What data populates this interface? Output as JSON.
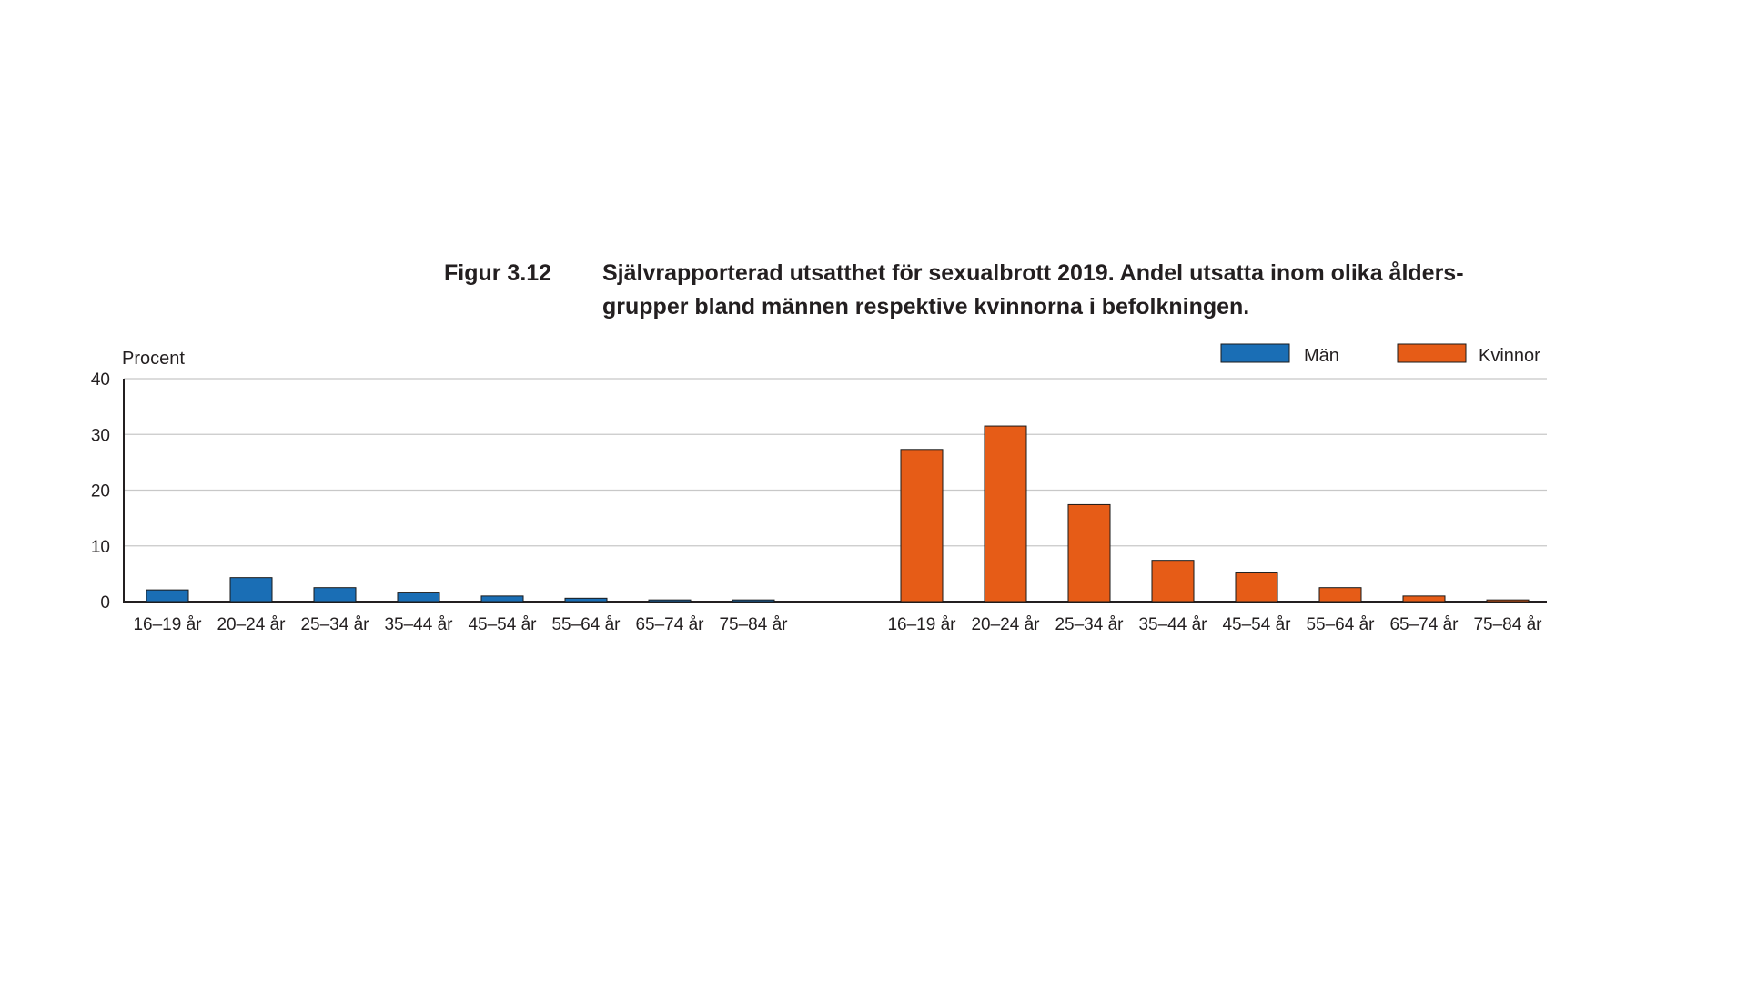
{
  "title": {
    "label": "Figur 3.12",
    "line1": "Självrapporterad utsatthet för sexualbrott 2019. Andel utsatta inom olika ålders-",
    "line2": "grupper bland männen respektive kvinnorna i befolkningen."
  },
  "chart_data": {
    "type": "bar",
    "ylabel": "Procent",
    "ylim": [
      0,
      40
    ],
    "yticks": [
      0,
      10,
      20,
      30,
      40
    ],
    "grid": true,
    "legend_position": "top-right",
    "series": [
      {
        "name": "Män",
        "color": "#1a6eb5",
        "categories": [
          "16–19 år",
          "20–24 år",
          "25–34 år",
          "35–44 år",
          "45–54 år",
          "55–64 år",
          "65–74 år",
          "75–84 år"
        ],
        "values": [
          2.1,
          4.3,
          2.5,
          1.7,
          1.0,
          0.6,
          0.3,
          0.3
        ]
      },
      {
        "name": "Kvinnor",
        "color": "#e65c17",
        "categories": [
          "16–19 år",
          "20–24 år",
          "25–34 år",
          "35–44 år",
          "45–54 år",
          "55–64 år",
          "65–74 år",
          "75–84 år"
        ],
        "values": [
          27.3,
          31.5,
          17.4,
          7.4,
          5.3,
          2.5,
          1.0,
          0.3
        ]
      }
    ]
  }
}
